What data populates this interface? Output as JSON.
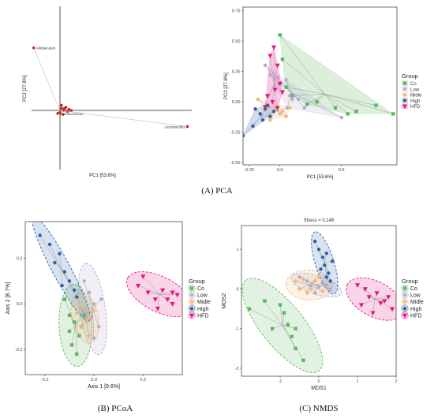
{
  "captions": {
    "a": "(A) PCA",
    "b": "(B) PCoA",
    "c": "(C) NMDS"
  },
  "colors": {
    "Co": "#5cb85c",
    "Low": "#b4a9cf",
    "Midle": "#f2b874",
    "High": "#2f5fa7",
    "HFD": "#e6147e",
    "biplot_point": "#c62828"
  },
  "chart_data": [
    {
      "type": "scatter",
      "id": "biplot",
      "title": "",
      "xlabel": "PC1 [53.6%]",
      "ylabel": "PC2 [27.8%]",
      "grid": false,
      "taxa": [
        {
          "name": "Allobaculum",
          "x": -0.35,
          "y": 0.62
        },
        {
          "name": "Ruminococcus",
          "x": -0.03,
          "y": -0.03
        },
        {
          "name": "Lactobacillus",
          "x": 1.7,
          "y": -0.16
        }
      ],
      "extra_points": [
        [
          0.02,
          0.02
        ],
        [
          0.05,
          0.0
        ],
        [
          0.08,
          0.03
        ],
        [
          0.0,
          -0.02
        ],
        [
          0.1,
          -0.01
        ],
        [
          0.04,
          -0.04
        ],
        [
          0.12,
          0.01
        ],
        [
          0.02,
          0.05
        ],
        [
          0.15,
          0.0
        ],
        [
          0.06,
          0.02
        ]
      ]
    },
    {
      "type": "scatter",
      "id": "pca",
      "title": "",
      "xlabel": "PC1 [53.6%]",
      "ylabel": "PC2 [27.8%]",
      "xlim": [
        -0.3,
        0.95
      ],
      "ylim": [
        -0.52,
        0.78
      ],
      "xticks": [
        "-0.25",
        "0.0",
        "0.5"
      ],
      "xtick_values": [
        -0.25,
        0.0,
        0.5
      ],
      "yticks": [
        "0.75",
        "0.50",
        "0.25",
        "0.00",
        "-0.25",
        "-0.50"
      ],
      "ytick_values": [
        0.75,
        0.5,
        0.25,
        0.0,
        -0.25,
        -0.5
      ],
      "legend_title": "Group",
      "legend_position": "right",
      "series": [
        {
          "name": "Co",
          "marker": "square",
          "points": [
            [
              0.0,
              0.55
            ],
            [
              0.02,
              0.35
            ],
            [
              0.05,
              0.12
            ],
            [
              0.1,
              0.05
            ],
            [
              0.22,
              -0.02
            ],
            [
              0.3,
              0.0
            ],
            [
              0.55,
              -0.1
            ],
            [
              0.62,
              -0.08
            ],
            [
              0.78,
              -0.03
            ],
            [
              0.92,
              -0.1
            ],
            [
              0.45,
              -0.05
            ]
          ]
        },
        {
          "name": "Low",
          "marker": "circle",
          "points": [
            [
              -0.12,
              0.3
            ],
            [
              -0.08,
              0.22
            ],
            [
              -0.02,
              0.2
            ],
            [
              0.05,
              0.18
            ],
            [
              0.08,
              0.05
            ],
            [
              0.1,
              0.02
            ],
            [
              0.06,
              -0.05
            ],
            [
              0.2,
              -0.05
            ],
            [
              0.5,
              -0.13
            ],
            [
              0.15,
              0.02
            ]
          ]
        },
        {
          "name": "Midle",
          "marker": "diamond",
          "points": [
            [
              -0.18,
              0.02
            ],
            [
              -0.12,
              -0.04
            ],
            [
              -0.08,
              -0.15
            ],
            [
              -0.04,
              -0.05
            ],
            [
              0.0,
              -0.1
            ],
            [
              0.02,
              -0.08
            ],
            [
              0.05,
              -0.12
            ],
            [
              0.08,
              -0.05
            ]
          ]
        },
        {
          "name": "High",
          "marker": "circle",
          "points": [
            [
              -0.3,
              -0.28
            ],
            [
              -0.22,
              -0.2
            ],
            [
              -0.2,
              -0.06
            ],
            [
              -0.16,
              -0.1
            ],
            [
              -0.14,
              -0.15
            ],
            [
              -0.12,
              -0.06
            ],
            [
              -0.08,
              -0.12
            ],
            [
              -0.1,
              -0.03
            ],
            [
              -0.05,
              -0.08
            ]
          ]
        },
        {
          "name": "HFD",
          "marker": "triangle-down",
          "points": [
            [
              -0.05,
              0.45
            ],
            [
              -0.08,
              0.38
            ],
            [
              -0.02,
              0.3
            ],
            [
              0.0,
              0.15
            ],
            [
              -0.04,
              0.1
            ],
            [
              -0.12,
              -0.04
            ],
            [
              -0.06,
              0.0
            ],
            [
              -0.02,
              -0.05
            ],
            [
              0.02,
              0.08
            ],
            [
              -0.1,
              0.05
            ]
          ]
        }
      ]
    },
    {
      "type": "scatter",
      "id": "pcoa",
      "title": "",
      "xlabel": "Axis 1 [9.6%]",
      "ylabel": "Axis 2 [8.7%]",
      "xlim": [
        -0.28,
        0.36
      ],
      "ylim": [
        -0.31,
        0.36
      ],
      "xticks": [
        "-0.2",
        "0.0",
        "0.2"
      ],
      "xtick_values": [
        -0.2,
        0.0,
        0.2
      ],
      "yticks": [
        "0.2",
        "0.0",
        "-0.2"
      ],
      "ytick_values": [
        0.2,
        0.0,
        -0.2
      ],
      "legend_title": "Group",
      "legend_position": "right",
      "series": [
        {
          "name": "Co",
          "marker": "square",
          "points": [
            [
              -0.12,
              0.02
            ],
            [
              -0.1,
              -0.05
            ],
            [
              -0.08,
              -0.08
            ],
            [
              -0.1,
              -0.12
            ],
            [
              -0.09,
              -0.18
            ],
            [
              -0.06,
              -0.14
            ],
            [
              -0.05,
              -0.1
            ],
            [
              -0.04,
              -0.05
            ],
            [
              -0.07,
              -0.22
            ],
            [
              -0.04,
              -0.02
            ]
          ]
        },
        {
          "name": "Low",
          "marker": "circle",
          "points": [
            [
              -0.04,
              0.1
            ],
            [
              -0.02,
              0.05
            ],
            [
              0.0,
              0.0
            ],
            [
              -0.01,
              -0.06
            ],
            [
              0.02,
              -0.1
            ],
            [
              0.03,
              0.02
            ],
            [
              0.0,
              -0.15
            ],
            [
              -0.03,
              -0.04
            ]
          ]
        },
        {
          "name": "Midle",
          "marker": "diamond",
          "points": [
            [
              -0.06,
              0.0
            ],
            [
              -0.04,
              -0.02
            ],
            [
              -0.02,
              -0.06
            ],
            [
              -0.05,
              -0.1
            ],
            [
              -0.02,
              -0.14
            ],
            [
              0.0,
              -0.03
            ],
            [
              -0.03,
              -0.08
            ],
            [
              -0.07,
              -0.04
            ]
          ]
        },
        {
          "name": "High",
          "marker": "circle",
          "points": [
            [
              -0.22,
              0.3
            ],
            [
              -0.18,
              0.26
            ],
            [
              -0.14,
              0.22
            ],
            [
              -0.16,
              0.18
            ],
            [
              -0.12,
              0.14
            ],
            [
              -0.1,
              0.1
            ],
            [
              -0.08,
              0.06
            ],
            [
              -0.13,
              0.08
            ],
            [
              -0.07,
              0.03
            ]
          ]
        },
        {
          "name": "HFD",
          "marker": "triangle-down",
          "points": [
            [
              0.2,
              0.12
            ],
            [
              0.22,
              0.05
            ],
            [
              0.25,
              0.02
            ],
            [
              0.28,
              0.06
            ],
            [
              0.3,
              0.02
            ],
            [
              0.32,
              0.05
            ],
            [
              0.32,
              0.0
            ],
            [
              0.26,
              -0.02
            ],
            [
              0.18,
              0.08
            ],
            [
              0.34,
              0.04
            ]
          ]
        }
      ]
    },
    {
      "type": "scatter",
      "id": "nmds",
      "title": "Stress = 0.146",
      "xlabel": "MDS1",
      "ylabel": "MDS2",
      "xlim": [
        -2.0,
        2.0
      ],
      "ylim": [
        -2.2,
        1.6
      ],
      "xticks": [
        "-1",
        "0",
        "1",
        "2"
      ],
      "xtick_values": [
        -1,
        0,
        1,
        2
      ],
      "yticks": [
        "1",
        "0",
        "-1",
        "-2"
      ],
      "ytick_values": [
        1,
        0,
        -1,
        -2
      ],
      "legend_title": "Group",
      "legend_position": "right",
      "series": [
        {
          "name": "Co",
          "marker": "square",
          "points": [
            [
              -1.8,
              -0.5
            ],
            [
              -1.4,
              -0.3
            ],
            [
              -1.0,
              -0.4
            ],
            [
              -0.9,
              -0.6
            ],
            [
              -0.8,
              -0.9
            ],
            [
              -0.7,
              -1.2
            ],
            [
              -0.6,
              -1.0
            ],
            [
              -0.6,
              -1.5
            ],
            [
              -0.4,
              -1.8
            ],
            [
              -1.2,
              -1.0
            ]
          ]
        },
        {
          "name": "Low",
          "marker": "circle",
          "points": [
            [
              -0.5,
              0.3
            ],
            [
              -0.3,
              0.2
            ],
            [
              -0.2,
              0.1
            ],
            [
              0.0,
              0.05
            ],
            [
              0.1,
              0.15
            ],
            [
              0.2,
              0.1
            ],
            [
              -0.1,
              -0.1
            ],
            [
              0.3,
              0.0
            ]
          ]
        },
        {
          "name": "Midle",
          "marker": "diamond",
          "points": [
            [
              -0.6,
              0.2
            ],
            [
              -0.5,
              0.0
            ],
            [
              -0.3,
              -0.1
            ],
            [
              -0.2,
              0.0
            ],
            [
              -0.1,
              0.2
            ],
            [
              0.1,
              -0.05
            ],
            [
              0.0,
              0.3
            ],
            [
              -0.4,
              0.25
            ]
          ]
        },
        {
          "name": "High",
          "marker": "circle",
          "points": [
            [
              -0.1,
              1.2
            ],
            [
              0.0,
              1.0
            ],
            [
              0.1,
              0.8
            ],
            [
              0.2,
              0.9
            ],
            [
              0.15,
              0.6
            ],
            [
              0.25,
              0.4
            ],
            [
              0.3,
              0.2
            ],
            [
              0.05,
              0.5
            ],
            [
              0.2,
              0.3
            ],
            [
              0.35,
              0.7
            ]
          ]
        },
        {
          "name": "HFD",
          "marker": "triangle-down",
          "points": [
            [
              1.0,
              0.1
            ],
            [
              1.2,
              0.0
            ],
            [
              1.3,
              -0.2
            ],
            [
              1.5,
              -0.1
            ],
            [
              1.7,
              -0.3
            ],
            [
              1.9,
              -0.5
            ],
            [
              1.1,
              -0.4
            ],
            [
              1.4,
              -0.6
            ],
            [
              1.6,
              -0.35
            ],
            [
              1.8,
              -0.2
            ]
          ]
        }
      ]
    }
  ]
}
